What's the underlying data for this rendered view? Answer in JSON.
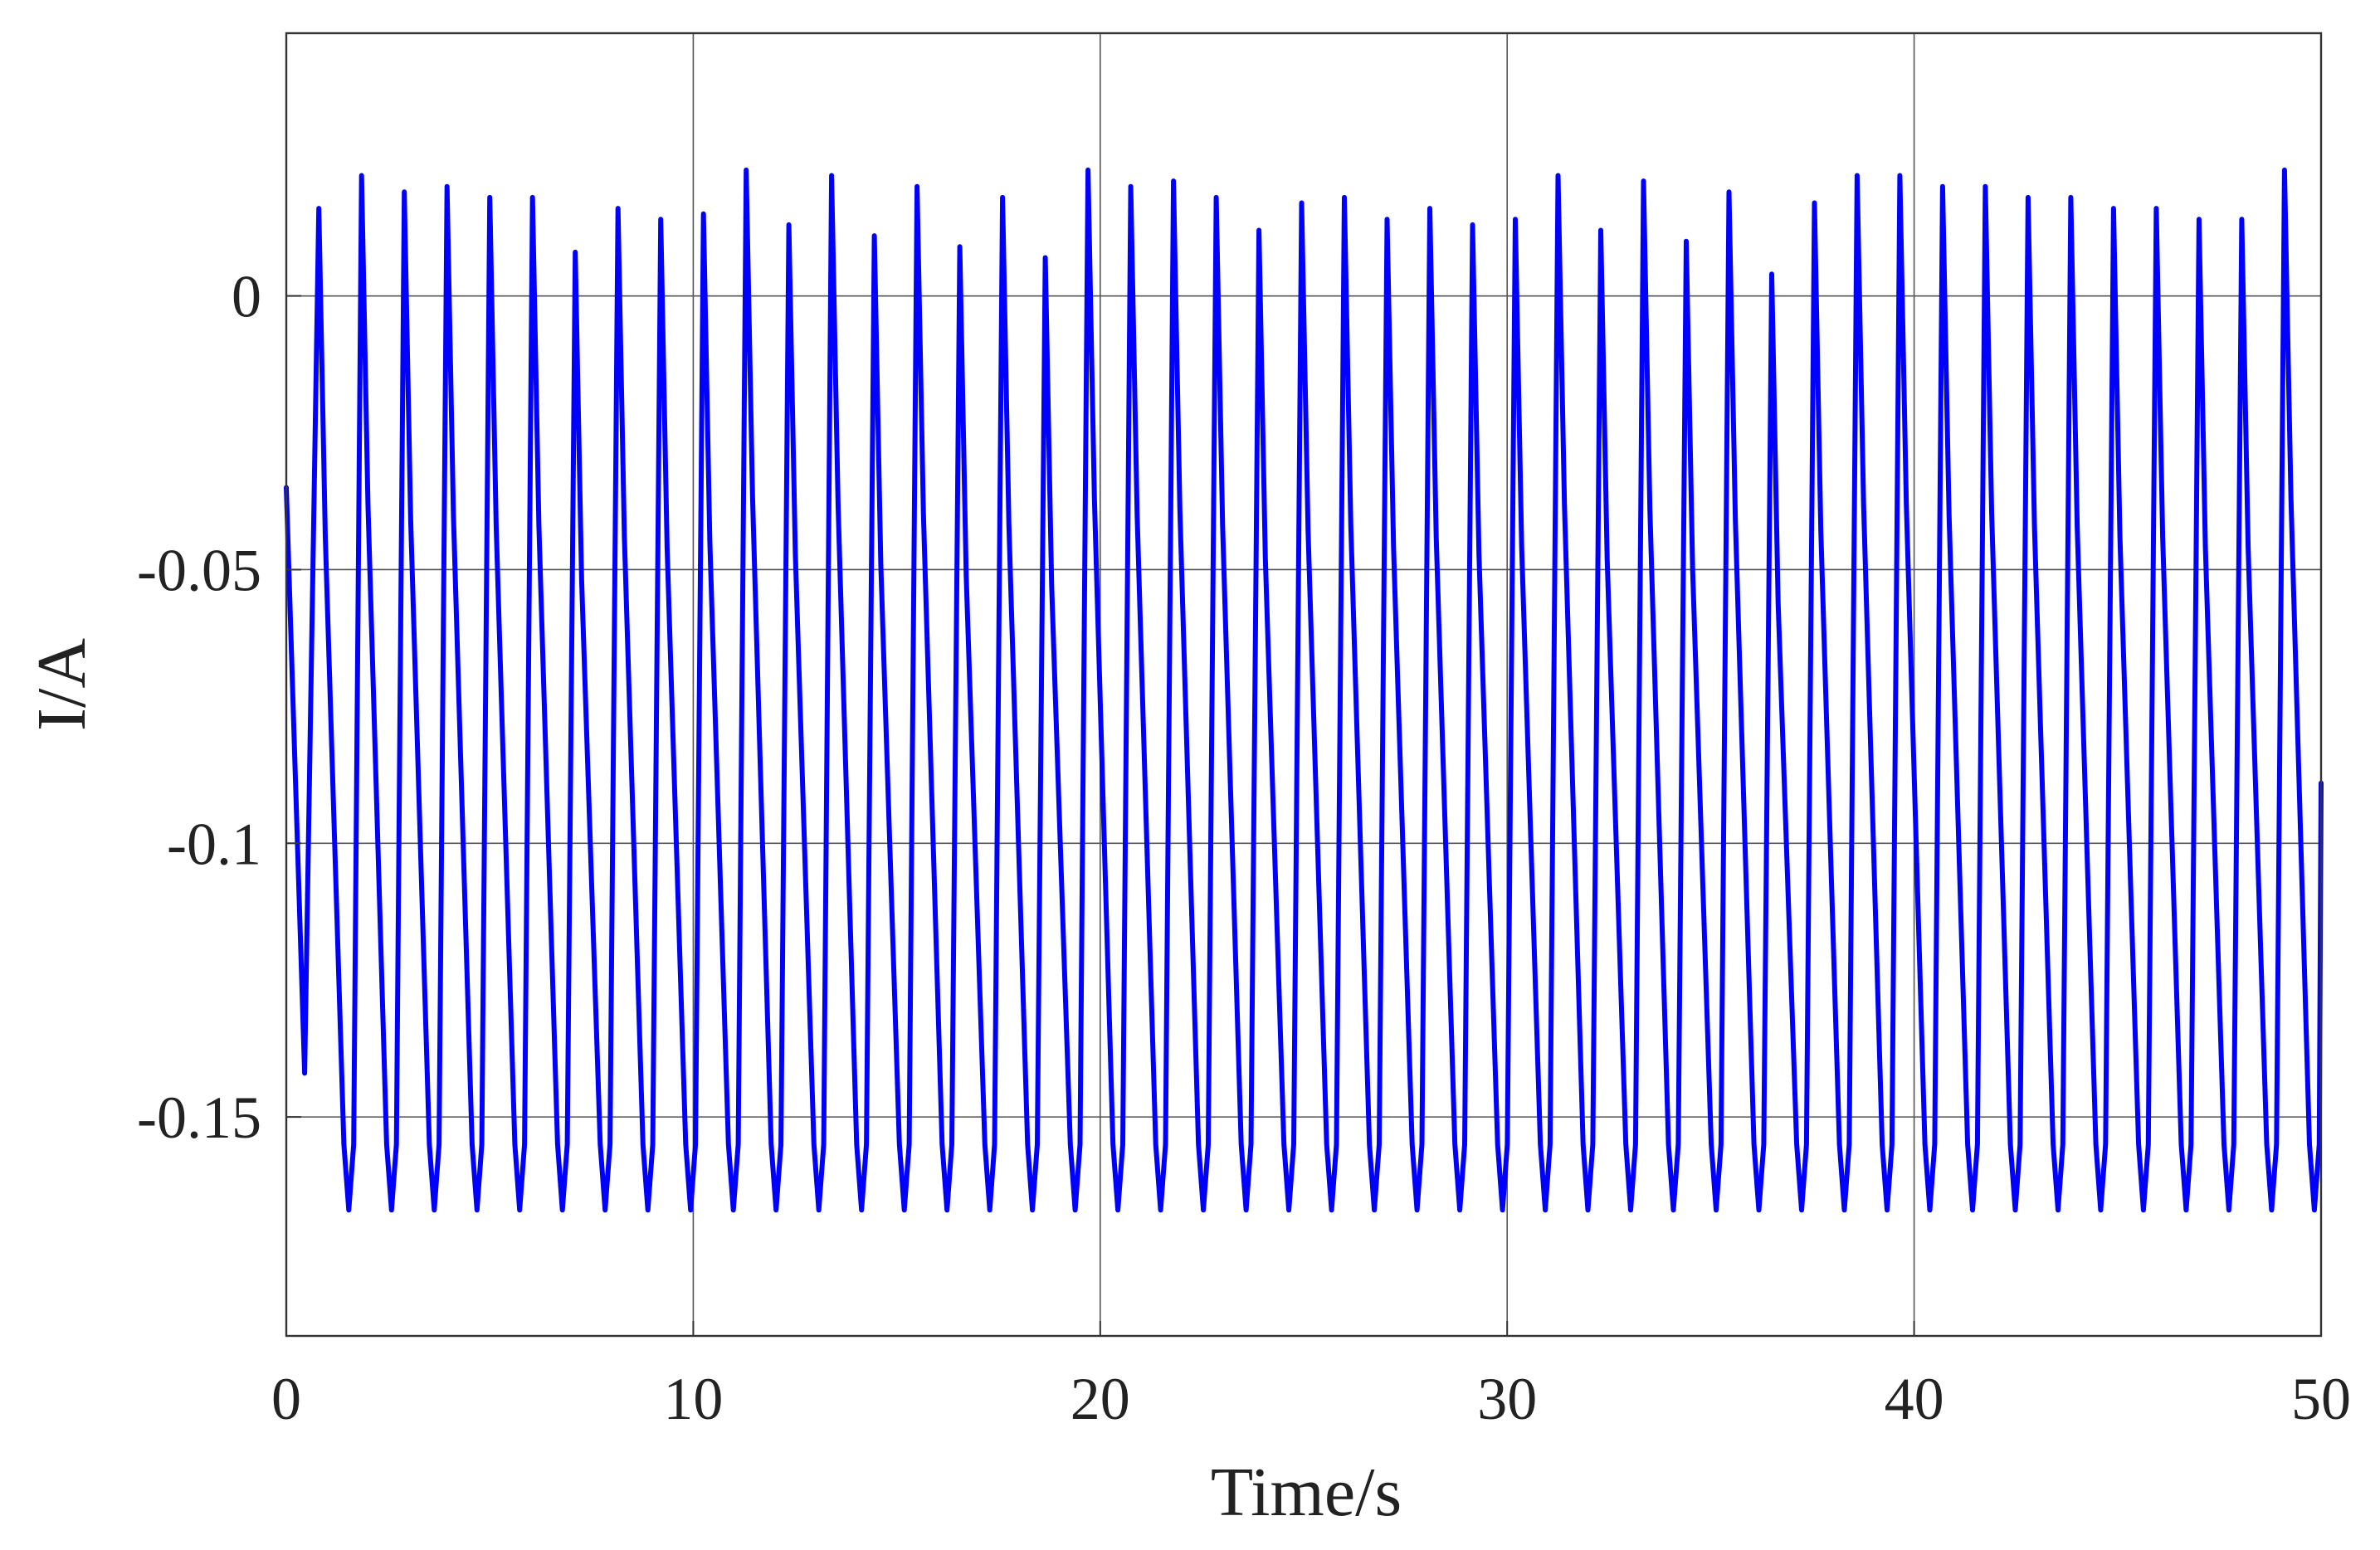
{
  "chart_data": {
    "type": "line",
    "title": "",
    "xlabel": "Time/s",
    "ylabel": "I/A",
    "xlim": [
      0,
      50
    ],
    "ylim": [
      -0.19,
      0.048
    ],
    "xticks": [
      0,
      10,
      20,
      30,
      40,
      50
    ],
    "xtick_labels": [
      "0",
      "10",
      "20",
      "30",
      "40",
      "50"
    ],
    "yticks": [
      0,
      -0.05,
      -0.1,
      -0.15
    ],
    "ytick_labels": [
      "0",
      "-0.05",
      "-0.1",
      "-0.15"
    ],
    "grid": true,
    "colors": {
      "series": "#0000ff",
      "axes": "#333333",
      "grid": "#555555"
    },
    "series": [
      {
        "name": "",
        "start": {
          "x": 0,
          "y": -0.035
        },
        "first_trough": {
          "x": 0.45,
          "y": -0.142
        },
        "end": {
          "x": 50,
          "y": -0.089
        },
        "trough_value": -0.167,
        "peaks": [
          {
            "x": 0.8,
            "y": 0.016
          },
          {
            "x": 1.85,
            "y": 0.022
          },
          {
            "x": 2.9,
            "y": 0.019
          },
          {
            "x": 3.95,
            "y": 0.02
          },
          {
            "x": 5.0,
            "y": 0.018
          },
          {
            "x": 6.05,
            "y": 0.018
          },
          {
            "x": 7.1,
            "y": 0.008
          },
          {
            "x": 8.15,
            "y": 0.016
          },
          {
            "x": 9.2,
            "y": 0.014
          },
          {
            "x": 10.25,
            "y": 0.015
          },
          {
            "x": 11.3,
            "y": 0.023
          },
          {
            "x": 12.35,
            "y": 0.013
          },
          {
            "x": 13.4,
            "y": 0.022
          },
          {
            "x": 14.45,
            "y": 0.011
          },
          {
            "x": 15.5,
            "y": 0.02
          },
          {
            "x": 16.55,
            "y": 0.009
          },
          {
            "x": 17.6,
            "y": 0.018
          },
          {
            "x": 18.65,
            "y": 0.007
          },
          {
            "x": 19.7,
            "y": 0.023
          },
          {
            "x": 20.75,
            "y": 0.02
          },
          {
            "x": 21.8,
            "y": 0.021
          },
          {
            "x": 22.85,
            "y": 0.018
          },
          {
            "x": 23.9,
            "y": 0.012
          },
          {
            "x": 24.95,
            "y": 0.017
          },
          {
            "x": 26.0,
            "y": 0.018
          },
          {
            "x": 27.05,
            "y": 0.014
          },
          {
            "x": 28.1,
            "y": 0.016
          },
          {
            "x": 29.15,
            "y": 0.013
          },
          {
            "x": 30.2,
            "y": 0.014
          },
          {
            "x": 31.25,
            "y": 0.022
          },
          {
            "x": 32.3,
            "y": 0.012
          },
          {
            "x": 33.35,
            "y": 0.021
          },
          {
            "x": 34.4,
            "y": 0.01
          },
          {
            "x": 35.45,
            "y": 0.019
          },
          {
            "x": 36.5,
            "y": 0.004
          },
          {
            "x": 37.55,
            "y": 0.017
          },
          {
            "x": 38.6,
            "y": 0.022
          },
          {
            "x": 39.65,
            "y": 0.022
          },
          {
            "x": 40.7,
            "y": 0.02
          },
          {
            "x": 41.75,
            "y": 0.02
          },
          {
            "x": 42.8,
            "y": 0.018
          },
          {
            "x": 43.85,
            "y": 0.018
          },
          {
            "x": 44.9,
            "y": 0.016
          },
          {
            "x": 45.95,
            "y": 0.016
          },
          {
            "x": 47.0,
            "y": 0.014
          },
          {
            "x": 48.05,
            "y": 0.014
          },
          {
            "x": 49.1,
            "y": 0.023
          }
        ]
      }
    ]
  }
}
